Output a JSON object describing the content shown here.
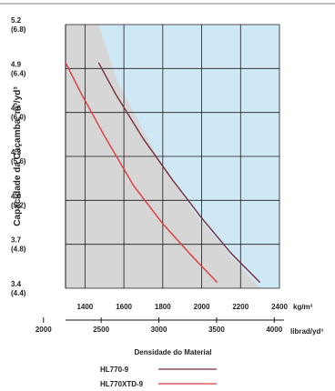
{
  "chart_data": {
    "type": "line",
    "ylabel": "Capacidade da Caçamba, m³/yd³",
    "xlabel": "Densidade do Material",
    "x_unit_primary": "kg/m³",
    "x_unit_secondary": "librad/yd³",
    "xlim": [
      1300,
      2400
    ],
    "ylim": [
      3.4,
      5.2
    ],
    "x_ticks": [
      "1400",
      "1600",
      "1800",
      "2000",
      "2200",
      "2400"
    ],
    "x2_ticks": [
      {
        "value": 2000,
        "label": "2000"
      },
      {
        "value": 2500,
        "label": "2500"
      },
      {
        "value": 3000,
        "label": "3000"
      },
      {
        "value": 3500,
        "label": "3500"
      },
      {
        "value": 4000,
        "label": "4000"
      }
    ],
    "y_ticks": [
      {
        "value": 5.2,
        "m3": "5.2",
        "yd3": "(6.8)"
      },
      {
        "value": 4.9,
        "m3": "4.9",
        "yd3": "(6.4)"
      },
      {
        "value": 4.6,
        "m3": "4.6",
        "yd3": "(6.0)"
      },
      {
        "value": 4.3,
        "m3": "4.3",
        "yd3": "(5.6)"
      },
      {
        "value": 4.0,
        "m3": "4.0",
        "yd3": "(5.2)"
      },
      {
        "value": 3.7,
        "m3": "3.7",
        "yd3": "(4.8)"
      },
      {
        "value": 3.4,
        "m3": "3.4",
        "yd3": "(4.4)"
      }
    ],
    "grid": true,
    "legend_position": "bottom",
    "region_colors": {
      "gray": "#d6d6d6",
      "blue": "#cfe8f5"
    },
    "region_boundary": [
      [
        1470,
        5.2
      ],
      [
        1570,
        4.8
      ],
      [
        1770,
        4.3
      ],
      [
        1960,
        3.92
      ],
      [
        2150,
        3.62
      ],
      [
        2300,
        3.4
      ]
    ],
    "series": [
      {
        "name": "HL770-9",
        "color": "#7a2d3c",
        "points": [
          [
            1470,
            4.94
          ],
          [
            1560,
            4.72
          ],
          [
            1700,
            4.42
          ],
          [
            1850,
            4.14
          ],
          [
            2000,
            3.88
          ],
          [
            2150,
            3.64
          ],
          [
            2300,
            3.44
          ]
        ]
      },
      {
        "name": "HL770XTD-9",
        "color": "#e03a3a",
        "points": [
          [
            1300,
            4.94
          ],
          [
            1380,
            4.73
          ],
          [
            1500,
            4.44
          ],
          [
            1650,
            4.1
          ],
          [
            1800,
            3.84
          ],
          [
            1950,
            3.62
          ],
          [
            2080,
            3.44
          ]
        ]
      }
    ]
  }
}
